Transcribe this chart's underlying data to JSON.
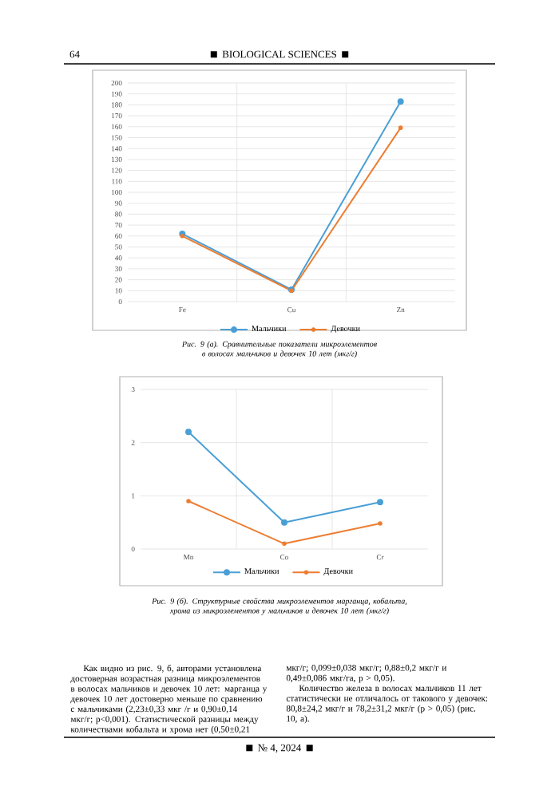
{
  "chart_data": [
    {
      "type": "line",
      "categories": [
        "Fe",
        "Cu",
        "Zn"
      ],
      "series": [
        {
          "name": "Мальчики",
          "color": "#4a9fd5",
          "values": [
            62,
            11,
            183
          ]
        },
        {
          "name": "Девочки",
          "color": "#ed7d31",
          "values": [
            60,
            10,
            159
          ]
        }
      ],
      "ylim": [
        0,
        200
      ],
      "yticks": [
        0,
        10,
        20,
        30,
        40,
        50,
        60,
        70,
        80,
        90,
        100,
        110,
        120,
        130,
        140,
        150,
        160,
        170,
        180,
        190,
        200
      ],
      "grid": true,
      "legend": "bottom",
      "marker": "circle",
      "line_style": "solid",
      "annotations": [
        "64",
        "BIOLOGICAL SCIENCES",
        "Рис. 9 (а). Сравнительные показатели микроэлементов в волосах мальчиков и девочек 10 лет (мкг/г)"
      ]
    },
    {
      "type": "line",
      "categories": [
        "Mn",
        "Co",
        "Cr"
      ],
      "series": [
        {
          "name": "Мальчики",
          "color": "#4a9fd5",
          "values": [
            2.2,
            0.5,
            0.88
          ]
        },
        {
          "name": "Девочки",
          "color": "#ed7d31",
          "values": [
            0.9,
            0.1,
            0.48
          ]
        }
      ],
      "ylim": [
        0,
        3
      ],
      "yticks": [
        0,
        1,
        2,
        3
      ],
      "grid": true,
      "legend": "bottom",
      "marker": "circle",
      "line_style": "solid",
      "annotations": [
        "Рис. 9 (б). Структурные свойства микроэлементов марганца, кобальта, хрома из микроэлементов у мальчиков и девочек 10 лет (мкг/г)",
        "Как видно из рис. 9, б, авторами установлена достоверная возрастная разница микроэлементов в волосах мальчиков и девочек 10 лет: марганца у девочек 10 лет достоверно меньше по сравнению с мальчиками (2,23±0,33 мкг /г и 0,90±0,14 мкг/г; p<0,001). Статистической разницы между количествами кобальта и хрома нет (0,50±0,21 мкг/г; 0,099±0,038 мкг/г; 0,88±0,2 мкг/г и 0,49±0,086 мкг/га, p > 0,05).",
        "Количество железа в волосах мальчиков 11 лет статистически не отличалось от такового у девочек: 80,8±24,2 мкг/г и 78,2±31,2 мкг/г (p > 0,05) (рис. 10, а).",
        "№ 4, 2024"
      ]
    }
  ]
}
